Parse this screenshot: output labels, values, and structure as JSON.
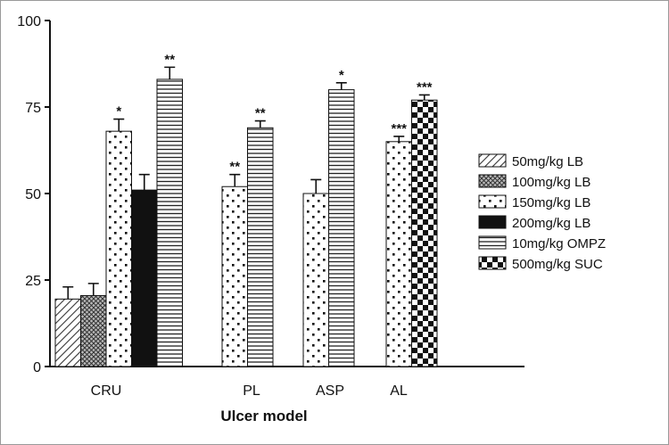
{
  "chart_data": {
    "type": "bar",
    "title": "",
    "xlabel": "Ulcer model",
    "ylabel": "",
    "ylim": [
      0,
      100
    ],
    "yticks": [
      "0",
      "25",
      "50",
      "75",
      "100"
    ],
    "categories": [
      "CRU",
      "PL",
      "ASP",
      "AL"
    ],
    "legend_position": "right",
    "series": [
      {
        "name": "50mg/kg LB",
        "pattern": "diagonal-hatch",
        "values": [
          19.5,
          null,
          null,
          null
        ],
        "errors": [
          3.5,
          null,
          null,
          null
        ],
        "sig": [
          "",
          "",
          "",
          ""
        ]
      },
      {
        "name": "100mg/kg LB",
        "pattern": "crosshatch",
        "values": [
          20.5,
          null,
          null,
          null
        ],
        "errors": [
          3.5,
          null,
          null,
          null
        ],
        "sig": [
          "",
          "",
          "",
          ""
        ]
      },
      {
        "name": "150mg/kg LB",
        "pattern": "dots",
        "values": [
          68,
          52,
          50,
          65
        ],
        "errors": [
          3.5,
          3.5,
          4,
          1.5
        ],
        "sig": [
          "*",
          "**",
          "",
          "***"
        ]
      },
      {
        "name": "200mg/kg LB",
        "pattern": "solid-black",
        "values": [
          51,
          null,
          null,
          null
        ],
        "errors": [
          4.5,
          null,
          null,
          null
        ],
        "sig": [
          "",
          "",
          "",
          ""
        ]
      },
      {
        "name": "10mg/kg OMPZ",
        "pattern": "horizontal-lines",
        "values": [
          83,
          69,
          80,
          null
        ],
        "errors": [
          3.5,
          2,
          2,
          null
        ],
        "sig": [
          "**",
          "**",
          "*",
          ""
        ]
      },
      {
        "name": "500mg/kg SUC",
        "pattern": "checker",
        "values": [
          null,
          null,
          null,
          77
        ],
        "errors": [
          null,
          null,
          null,
          1.5
        ],
        "sig": [
          "",
          "",
          "",
          "***"
        ]
      }
    ]
  }
}
